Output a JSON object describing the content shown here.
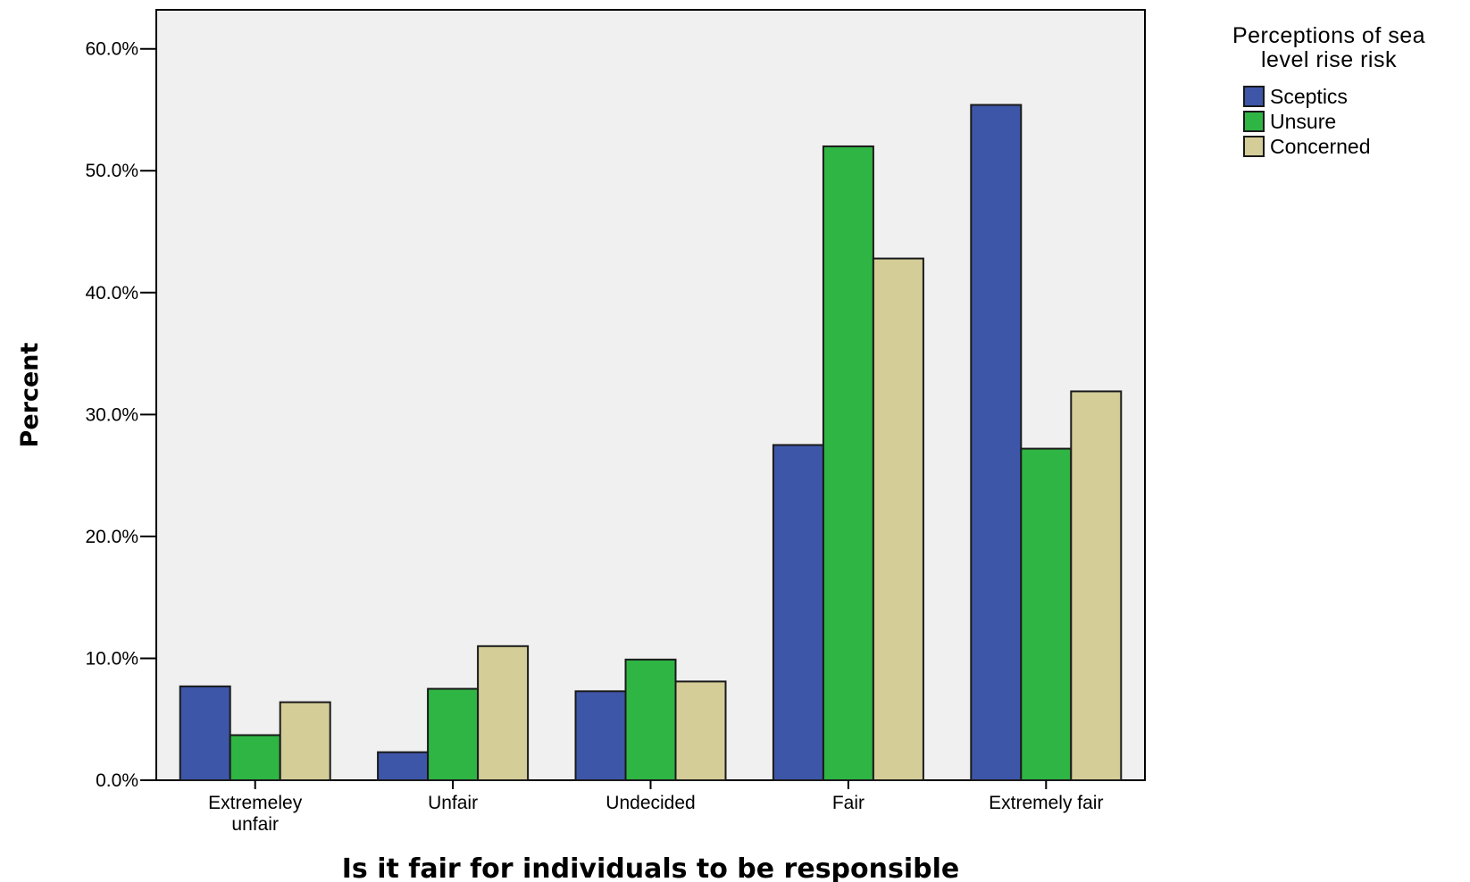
{
  "chart_data": {
    "type": "bar",
    "title": "",
    "xlabel": "Is it fair for individuals to be responsible",
    "ylabel": "Percent",
    "categories": [
      [
        "Extremeley",
        "unfair"
      ],
      [
        "Unfair"
      ],
      [
        "Undecided"
      ],
      [
        "Fair"
      ],
      [
        "Extremely fair"
      ]
    ],
    "y_ticks": [
      "0.0%",
      "10.0%",
      "20.0%",
      "30.0%",
      "40.0%",
      "50.0%",
      "60.0%"
    ],
    "ylim": [
      0,
      60
    ],
    "ylim_top": 63.2,
    "grid": false,
    "legend": {
      "title_lines": [
        "Perceptions of sea",
        "level rise risk"
      ],
      "position": "right"
    },
    "series": [
      {
        "name": "Sceptics",
        "color": "#3d56a8",
        "values": [
          7.7,
          2.3,
          7.3,
          27.5,
          55.4
        ]
      },
      {
        "name": "Unsure",
        "color": "#2fb544",
        "values": [
          3.7,
          7.5,
          9.9,
          52.0,
          27.2
        ]
      },
      {
        "name": "Concerned",
        "color": "#d4cd98",
        "values": [
          6.4,
          11.0,
          8.1,
          42.8,
          31.9
        ]
      }
    ],
    "plot_background": "#f0f0f0"
  }
}
